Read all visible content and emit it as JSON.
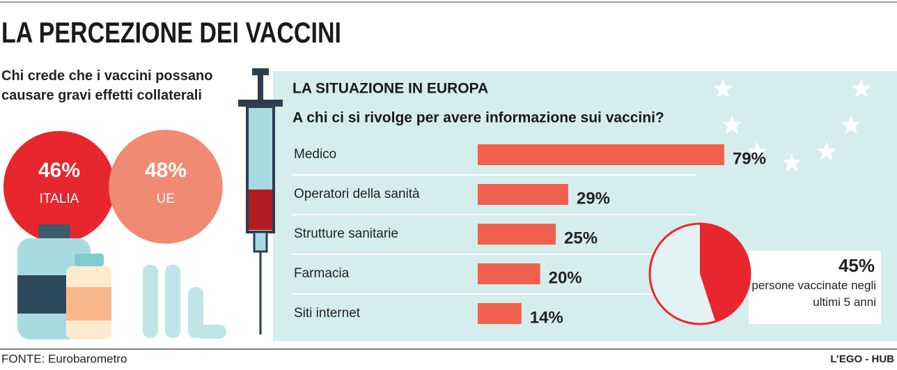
{
  "title": "LA PERCEZIONE DEI VACCINI",
  "source": "FONTE: Eurobarometro",
  "credit": "L’EGO - HUB",
  "chart_data": [
    {
      "type": "bubble",
      "title": "Chi crede che i vaccini possano causare gravi effetti collaterali",
      "categories": [
        "ITALIA",
        "UE"
      ],
      "values": [
        46,
        48
      ],
      "value_labels": [
        "46%",
        "48%"
      ],
      "colors": [
        "#e8262e",
        "#f18a72"
      ]
    },
    {
      "type": "bar",
      "title": "LA SITUAZIONE IN EUROPA",
      "subtitle": "A chi ci si rivolge per avere informazione sui vaccini?",
      "categories": [
        "Medico",
        "Operatori della sanità",
        "Strutture sanitarie",
        "Farmacia",
        "Siti internet"
      ],
      "values": [
        79,
        29,
        25,
        20,
        14
      ],
      "value_labels": [
        "79%",
        "29%",
        "25%",
        "20%",
        "14%"
      ],
      "color": "#f0604f"
    },
    {
      "type": "pie",
      "values": [
        45
      ],
      "value_labels": [
        "45%"
      ],
      "label": "persone vaccinate negli ultimi 5 anni",
      "color": "#e8262e"
    }
  ]
}
